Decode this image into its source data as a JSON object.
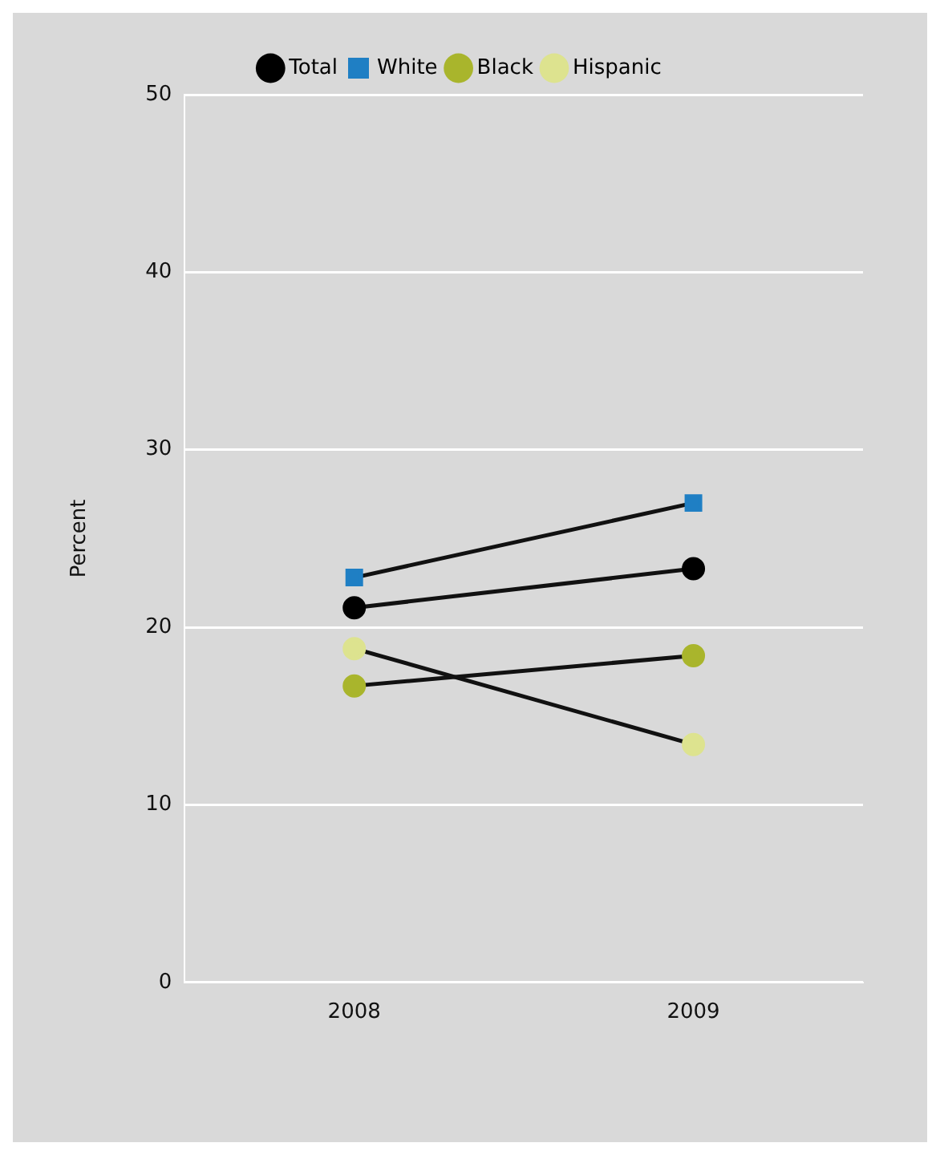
{
  "chart_data": {
    "type": "line",
    "ylabel": "Percent",
    "categories": [
      "2008",
      "2009"
    ],
    "series": [
      {
        "name": "Total",
        "color": "#000000",
        "marker": "circle",
        "values": [
          21.1,
          23.3
        ]
      },
      {
        "name": "White",
        "color": "#1f7fc4",
        "marker": "square",
        "values": [
          22.8,
          27.0
        ]
      },
      {
        "name": "Black",
        "color": "#a9b52c",
        "marker": "circle",
        "values": [
          16.7,
          18.4
        ]
      },
      {
        "name": "Hispanic",
        "color": "#dde38f",
        "marker": "circle",
        "values": [
          18.8,
          13.4
        ]
      }
    ],
    "ylim": [
      0,
      50
    ],
    "yticks": [
      0,
      10,
      20,
      30,
      40,
      50
    ],
    "grid": "y",
    "legend": "top",
    "line_style": "solid"
  }
}
